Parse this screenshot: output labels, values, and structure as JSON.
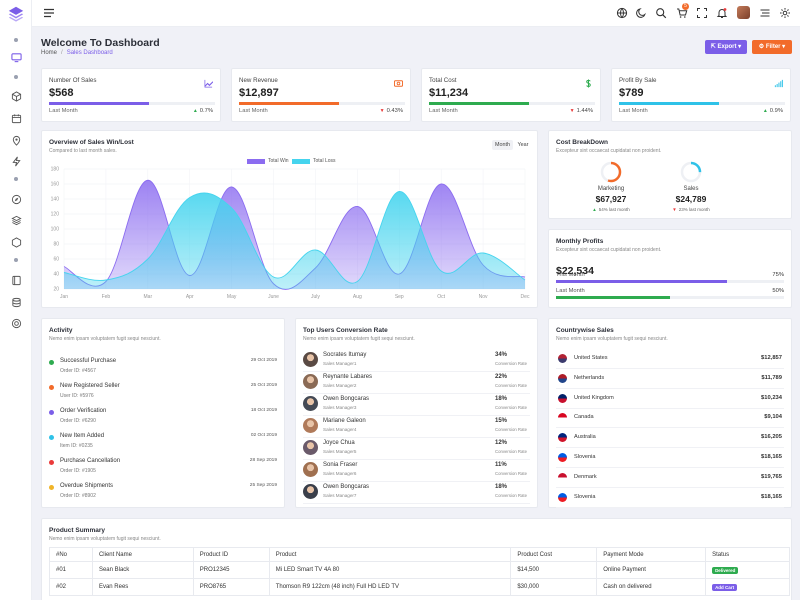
{
  "header": {
    "title": "Welcome To Dashboard",
    "breadcrumb_home": "Home",
    "breadcrumb_current": "Sales Dashboard"
  },
  "actions": {
    "export_label": "Export",
    "filter_label": "Filter"
  },
  "topbar": {
    "cart_count": "5",
    "icons": [
      "globe-icon",
      "moon-icon",
      "search-icon",
      "cart-icon",
      "bell-icon",
      "fullscreen-icon",
      "avatar",
      "menu-icon",
      "gear-icon"
    ]
  },
  "stats": [
    {
      "label": "Number Of Sales",
      "value": "$568",
      "sub": "Last Month",
      "pct": "0.7%",
      "trend": "up",
      "progress": 0.6,
      "color": "#7b5ee8",
      "icon": "chart-line-icon"
    },
    {
      "label": "New Revenue",
      "value": "$12,897",
      "sub": "Last Month",
      "pct": "0.43%",
      "trend": "down",
      "progress": 0.6,
      "color": "#f26b2a",
      "icon": "cash-icon"
    },
    {
      "label": "Total Cost",
      "value": "$11,234",
      "sub": "Last Month",
      "pct": "1.44%",
      "trend": "down",
      "progress": 0.6,
      "color": "#2eab4f",
      "icon": "dollar-icon"
    },
    {
      "label": "Profit By Sale",
      "value": "$789",
      "sub": "Last Month",
      "pct": "0.9%",
      "trend": "up",
      "progress": 0.6,
      "color": "#2fc2e8",
      "icon": "bars-icon"
    }
  ],
  "sales_chart": {
    "title": "Overview of Sales Win/Lost",
    "subtitle": "Compared to last month sales.",
    "toggle": [
      "Month",
      "Year"
    ],
    "active_toggle": "Month"
  },
  "chart_data": {
    "type": "area",
    "categories": [
      "Jan",
      "Feb",
      "Mar",
      "Apr",
      "May",
      "June",
      "July",
      "Aug",
      "Sep",
      "Oct",
      "Nov",
      "Dec"
    ],
    "ylim": [
      20,
      180
    ],
    "yticks": [
      20,
      40,
      60,
      80,
      100,
      120,
      140,
      160,
      180
    ],
    "series": [
      {
        "name": "Total Win",
        "color": "#8b6cf0",
        "values": [
          50,
          30,
          165,
          38,
          156,
          27,
          48,
          130,
          40,
          160,
          52,
          36
        ]
      },
      {
        "name": "Total Loss",
        "color": "#45d4ee",
        "values": [
          42,
          32,
          60,
          142,
          128,
          36,
          72,
          30,
          150,
          44,
          68,
          32
        ]
      }
    ]
  },
  "cost_breakdown": {
    "title": "Cost BreakDown",
    "subtitle": "Excepteur sint occaecat cupidatat non proident.",
    "items": [
      {
        "label": "Marketing",
        "value": "$67,927",
        "sub": "54% last month",
        "trend": "up",
        "ring": 0.55,
        "color": "#f26b2a"
      },
      {
        "label": "Sales",
        "value": "$24,789",
        "sub": "23% last month",
        "trend": "down",
        "ring": 0.25,
        "color": "#2fc2e8"
      }
    ]
  },
  "monthly_profits": {
    "title": "Monthly Profits",
    "subtitle": "Excepteur sint occaecat cupidatat non proident.",
    "value": "$22,534",
    "rows": [
      {
        "label": "This Month",
        "pct": "75%",
        "progress": 0.75,
        "color": "#7b5ee8"
      },
      {
        "label": "Last Month",
        "pct": "50%",
        "progress": 0.5,
        "color": "#2eab4f"
      }
    ]
  },
  "activity": {
    "title": "Activity",
    "subtitle": "Nemo enim ipsam voluptatem fugit sequi nesciunt.",
    "items": [
      {
        "title": "Successful Purchase",
        "sub": "Order ID: #4567",
        "date": "29 Oct 2019",
        "color": "#2eab4f"
      },
      {
        "title": "New Registered Seller",
        "sub": "User ID: #5976",
        "date": "25 Oct 2019",
        "color": "#f26b2a"
      },
      {
        "title": "Order Verification",
        "sub": "Order ID: #6290",
        "date": "18 Oct 2019",
        "color": "#7b5ee8"
      },
      {
        "title": "New Item Added",
        "sub": "Item ID: #0235",
        "date": "02 Oct 2019",
        "color": "#2fc2e8"
      },
      {
        "title": "Purchase Cancellation",
        "sub": "Order ID: #1905",
        "date": "28 Sep 2019",
        "color": "#ea3a3a"
      },
      {
        "title": "Overdue Shipments",
        "sub": "Order ID: #8902",
        "date": "25 Sep 2019",
        "color": "#f0b429"
      }
    ]
  },
  "top_users": {
    "title": "Top Users Conversion Rate",
    "subtitle": "Nemo enim ipsam voluptatem fugit sequi nesciunt.",
    "conv_label": "Conversion Rate",
    "users": [
      {
        "name": "Socrates Itumay",
        "role": "Sales Manager1",
        "pct": "34%",
        "avatar": "#5a4a44"
      },
      {
        "name": "Reynante Labares",
        "role": "Sales Manager2",
        "pct": "22%",
        "avatar": "#8a6a55"
      },
      {
        "name": "Owen Bongcaras",
        "role": "Sales Manager3",
        "pct": "18%",
        "avatar": "#444a55"
      },
      {
        "name": "Mariane Galeon",
        "role": "Sales Manager4",
        "pct": "15%",
        "avatar": "#b07a5a"
      },
      {
        "name": "Joyce Chua",
        "role": "Sales Manager5",
        "pct": "12%",
        "avatar": "#6a5a6a"
      },
      {
        "name": "Sonia Fraser",
        "role": "Sales Manager6",
        "pct": "11%",
        "avatar": "#a07050"
      },
      {
        "name": "Owen Bongcaras",
        "role": "Sales Manager7",
        "pct": "18%",
        "avatar": "#3a3f4a"
      }
    ]
  },
  "countries": {
    "title": "Countrywise Sales",
    "subtitle": "Nemo enim ipsam voluptatem fugit sequi nesciunt.",
    "items": [
      {
        "name": "United States",
        "value": "$12,857",
        "flag": "us-flag-icon",
        "c1": "#b22234",
        "c2": "#3c3b6e"
      },
      {
        "name": "Netherlands",
        "value": "$11,789",
        "flag": "nl-flag-icon",
        "c1": "#ae1c28",
        "c2": "#21468b"
      },
      {
        "name": "United Kingdom",
        "value": "$10,234",
        "flag": "uk-flag-icon",
        "c1": "#012169",
        "c2": "#c8102e"
      },
      {
        "name": "Canada",
        "value": "$9,104",
        "flag": "ca-flag-icon",
        "c1": "#d80621",
        "c2": "#ffffff"
      },
      {
        "name": "Australia",
        "value": "$16,205",
        "flag": "au-flag-icon",
        "c1": "#00247d",
        "c2": "#cf142b"
      },
      {
        "name": "Slovenia",
        "value": "$18,165",
        "flag": "si-flag-icon",
        "c1": "#005ce5",
        "c2": "#ed1c24"
      },
      {
        "name": "Denmark",
        "value": "$19,765",
        "flag": "dk-flag-icon",
        "c1": "#c8102e",
        "c2": "#ffffff"
      },
      {
        "name": "Slovenia",
        "value": "$18,165",
        "flag": "si-flag-icon",
        "c1": "#005ce5",
        "c2": "#ed1c24"
      }
    ]
  },
  "product_summary": {
    "title": "Product Summary",
    "subtitle": "Nemo enim ipsam voluptatem fugit sequi nesciunt.",
    "columns": [
      "#No",
      "Client Name",
      "Product ID",
      "Product",
      "Product Cost",
      "Payment Mode",
      "Status"
    ],
    "rows": [
      {
        "no": "#01",
        "client": "Sean Black",
        "pid": "PRO12345",
        "product": "Mi LED Smart TV 4A 80",
        "cost": "$14,500",
        "mode": "Online Payment",
        "status": "Delivered",
        "status_color": "#2eab4f"
      },
      {
        "no": "#02",
        "client": "Evan Rees",
        "pid": "PRO8765",
        "product": "Thomson R9 122cm (48 inch) Full HD LED TV",
        "cost": "$30,000",
        "mode": "Cash on delivered",
        "status": "Add Cart",
        "status_color": "#7b5ee8"
      }
    ]
  }
}
